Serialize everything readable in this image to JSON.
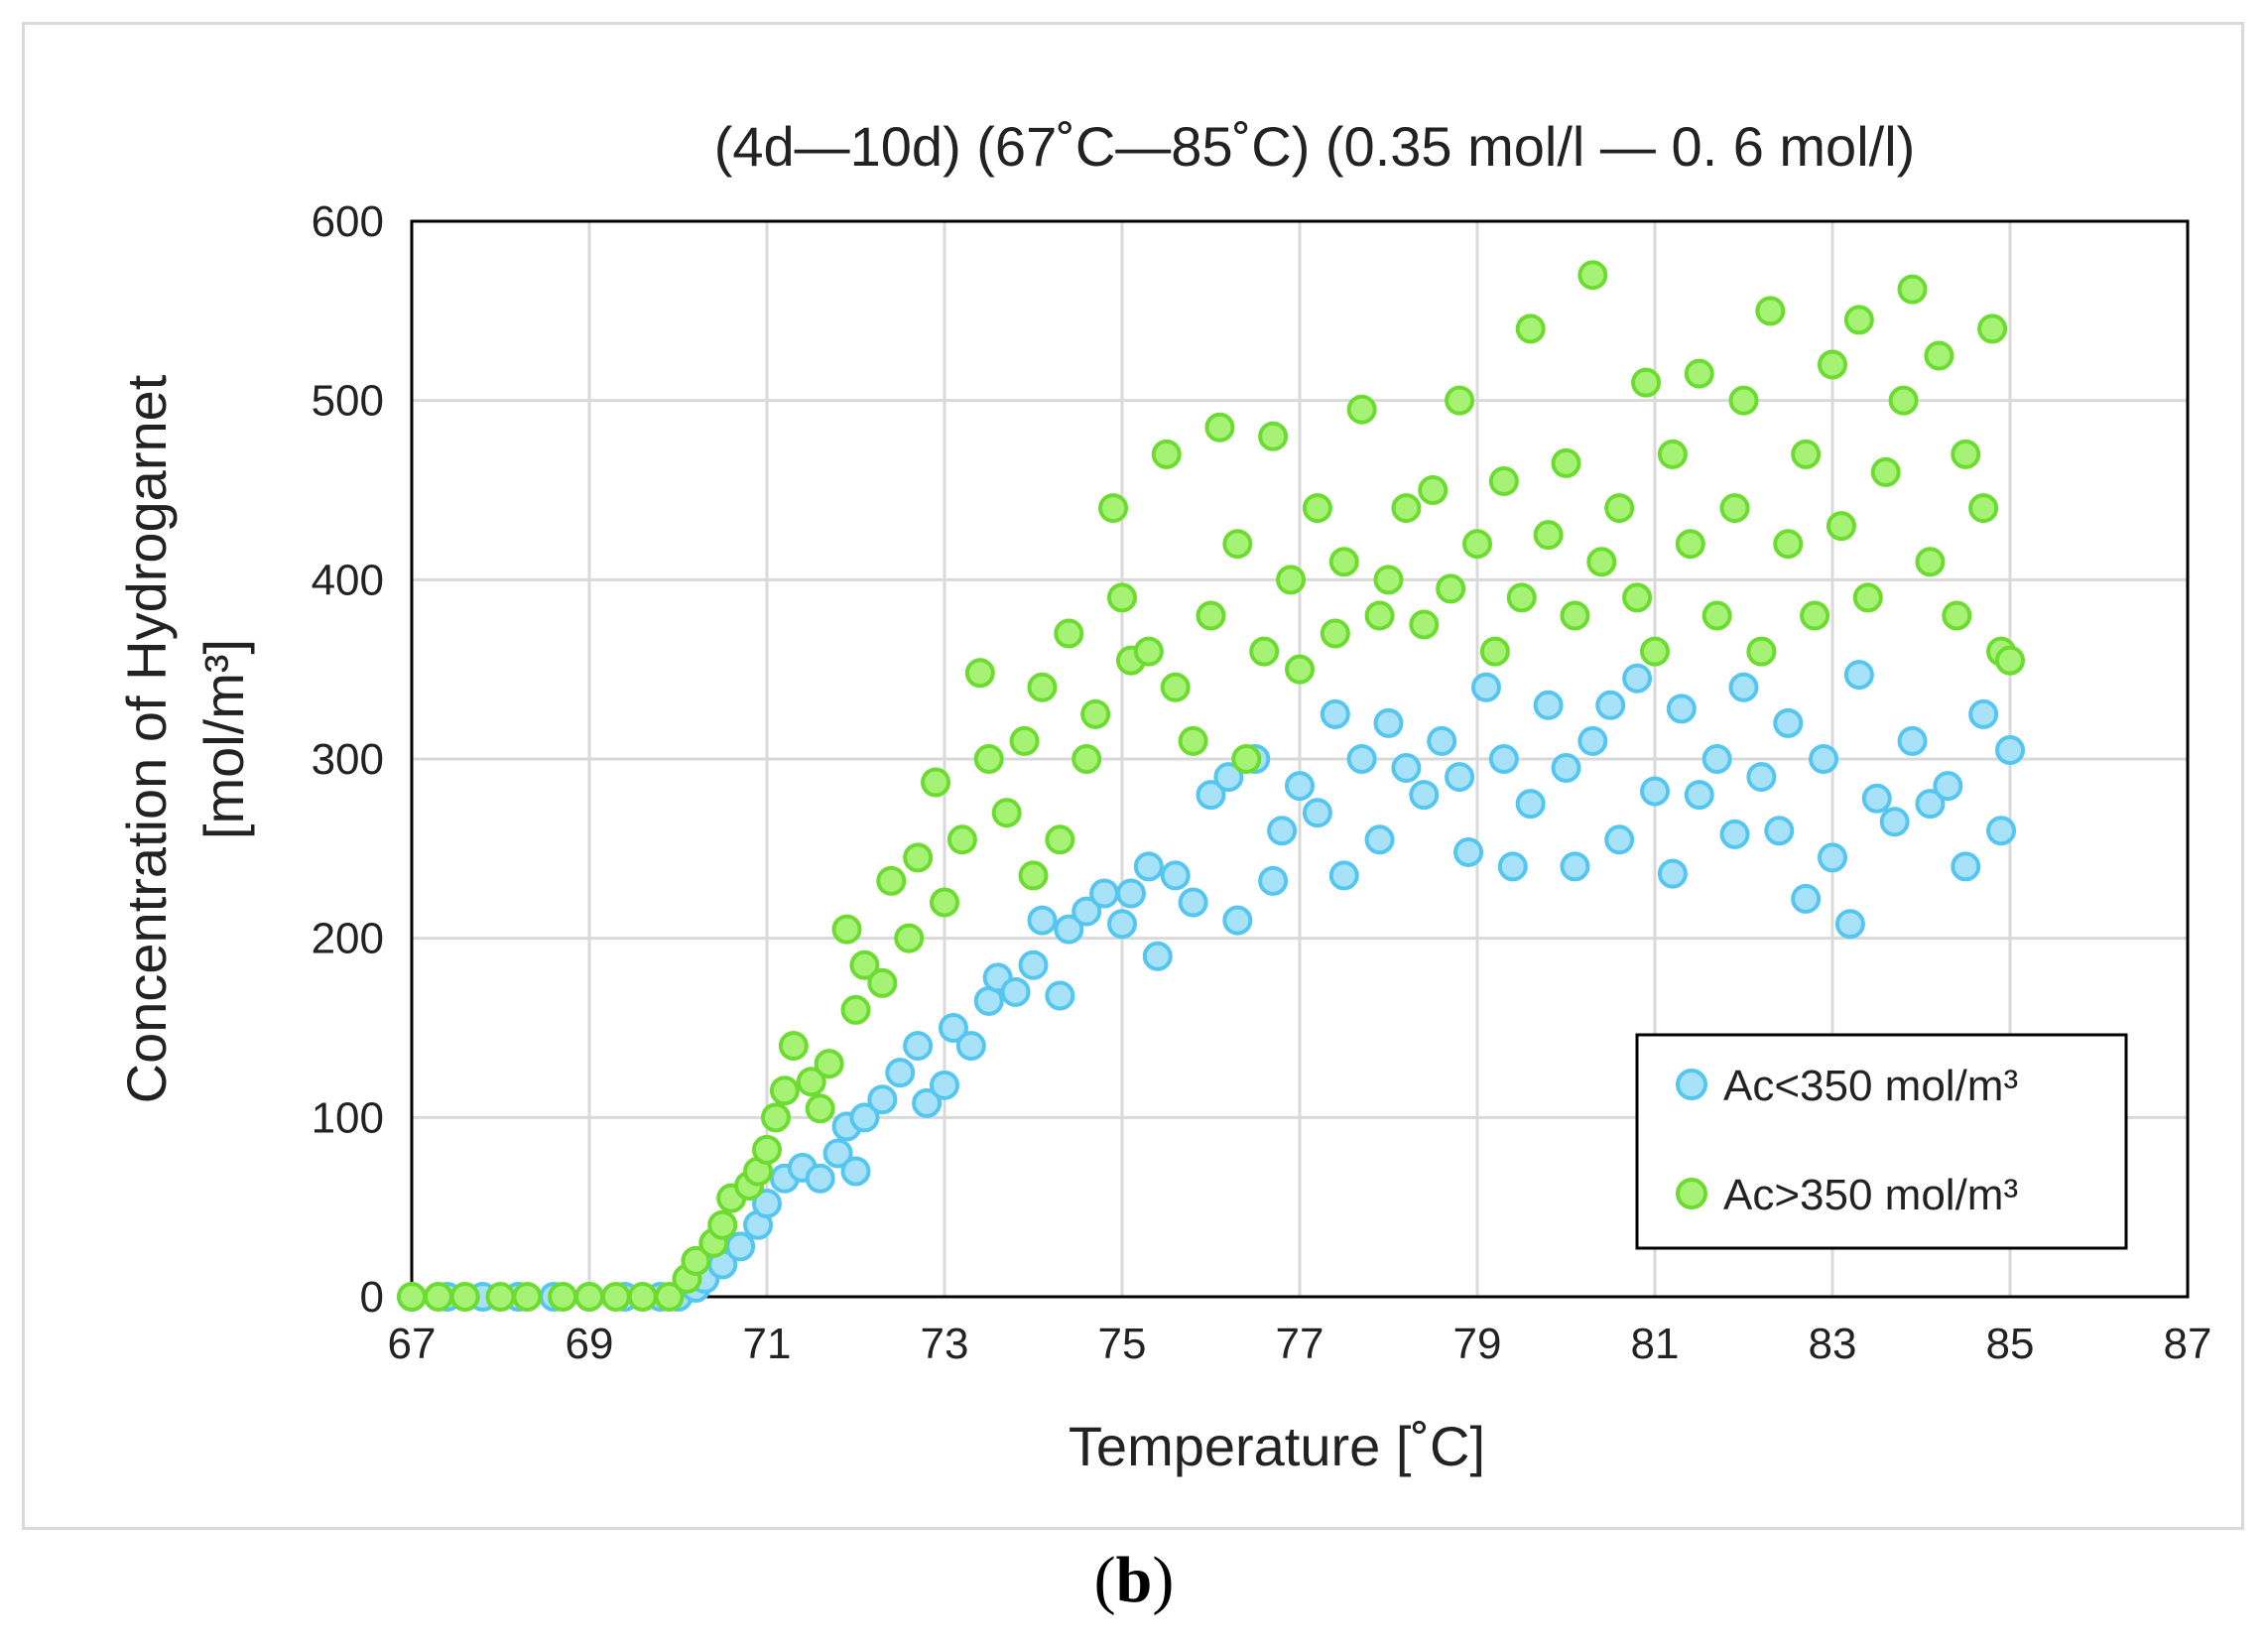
{
  "caption": {
    "open": "(",
    "letter": "b",
    "close": ")"
  },
  "chart_data": {
    "type": "scatter",
    "title": "(4d—10d) (67˚C—85˚C) (0.35 mol/l — 0. 6 mol/l)",
    "xlabel": "Temperature [˚C]",
    "ylabel_line1": "Concentration of Hydrogarnet",
    "ylabel_line2": "[mol/m³]",
    "xlim": [
      67,
      87
    ],
    "ylim": [
      0,
      600
    ],
    "xticks": [
      67,
      69,
      71,
      73,
      75,
      77,
      79,
      81,
      83,
      85,
      87
    ],
    "yticks": [
      0,
      100,
      200,
      300,
      400,
      500,
      600
    ],
    "grid": true,
    "legend_position": "bottom-right",
    "series": [
      {
        "name": "Ac<350 mol/m³",
        "fill": "#a8e2f8",
        "stroke": "#55c6f0",
        "points": [
          [
            67,
            0
          ],
          [
            67.4,
            0
          ],
          [
            67.8,
            0
          ],
          [
            68.2,
            0
          ],
          [
            68.6,
            0
          ],
          [
            69,
            0
          ],
          [
            69.4,
            0
          ],
          [
            69.8,
            0
          ],
          [
            70,
            0
          ],
          [
            70.2,
            5
          ],
          [
            70.3,
            10
          ],
          [
            70.5,
            18
          ],
          [
            70.7,
            28
          ],
          [
            70.9,
            40
          ],
          [
            71.0,
            52
          ],
          [
            71.2,
            66
          ],
          [
            71.4,
            72
          ],
          [
            71.6,
            66
          ],
          [
            71.8,
            80
          ],
          [
            71.9,
            95
          ],
          [
            72.0,
            70
          ],
          [
            72.1,
            100
          ],
          [
            72.3,
            110
          ],
          [
            72.5,
            125
          ],
          [
            72.7,
            140
          ],
          [
            72.8,
            108
          ],
          [
            73.0,
            118
          ],
          [
            73.1,
            150
          ],
          [
            73.3,
            140
          ],
          [
            73.5,
            165
          ],
          [
            73.6,
            178
          ],
          [
            73.8,
            170
          ],
          [
            74.0,
            185
          ],
          [
            74.1,
            210
          ],
          [
            74.3,
            168
          ],
          [
            74.4,
            205
          ],
          [
            74.6,
            215
          ],
          [
            74.8,
            225
          ],
          [
            75.0,
            208
          ],
          [
            75.1,
            225
          ],
          [
            75.3,
            240
          ],
          [
            75.4,
            190
          ],
          [
            75.6,
            235
          ],
          [
            75.8,
            220
          ],
          [
            76.0,
            280
          ],
          [
            76.2,
            290
          ],
          [
            76.3,
            210
          ],
          [
            76.5,
            300
          ],
          [
            76.7,
            232
          ],
          [
            76.8,
            260
          ],
          [
            77.0,
            285
          ],
          [
            77.2,
            270
          ],
          [
            77.4,
            325
          ],
          [
            77.5,
            235
          ],
          [
            77.7,
            300
          ],
          [
            77.9,
            255
          ],
          [
            78.0,
            320
          ],
          [
            78.2,
            295
          ],
          [
            78.4,
            280
          ],
          [
            78.6,
            310
          ],
          [
            78.8,
            290
          ],
          [
            78.9,
            248
          ],
          [
            79.1,
            340
          ],
          [
            79.3,
            300
          ],
          [
            79.4,
            240
          ],
          [
            79.6,
            275
          ],
          [
            79.8,
            330
          ],
          [
            80.0,
            295
          ],
          [
            80.1,
            240
          ],
          [
            80.3,
            310
          ],
          [
            80.5,
            330
          ],
          [
            80.6,
            255
          ],
          [
            80.8,
            345
          ],
          [
            81.0,
            282
          ],
          [
            81.2,
            236
          ],
          [
            81.3,
            328
          ],
          [
            81.5,
            280
          ],
          [
            81.7,
            300
          ],
          [
            81.9,
            258
          ],
          [
            82.0,
            340
          ],
          [
            82.2,
            290
          ],
          [
            82.4,
            260
          ],
          [
            82.5,
            320
          ],
          [
            82.7,
            222
          ],
          [
            82.9,
            300
          ],
          [
            83.0,
            245
          ],
          [
            83.2,
            208
          ],
          [
            83.3,
            347
          ],
          [
            83.5,
            278
          ],
          [
            83.7,
            265
          ],
          [
            83.9,
            310
          ],
          [
            84.1,
            275
          ],
          [
            84.3,
            285
          ],
          [
            84.5,
            240
          ],
          [
            84.7,
            325
          ],
          [
            84.9,
            260
          ],
          [
            85.0,
            305
          ]
        ]
      },
      {
        "name": "Ac>350 mol/m³",
        "fill": "#a6f274",
        "stroke": "#6cdc30",
        "points": [
          [
            67,
            0
          ],
          [
            67.3,
            0
          ],
          [
            67.6,
            0
          ],
          [
            68.0,
            0
          ],
          [
            68.3,
            0
          ],
          [
            68.7,
            0
          ],
          [
            69.0,
            0
          ],
          [
            69.3,
            0
          ],
          [
            69.6,
            0
          ],
          [
            69.9,
            0
          ],
          [
            70.1,
            10
          ],
          [
            70.2,
            20
          ],
          [
            70.4,
            30
          ],
          [
            70.5,
            40
          ],
          [
            70.6,
            55
          ],
          [
            70.8,
            62
          ],
          [
            70.9,
            70
          ],
          [
            71.0,
            82
          ],
          [
            71.1,
            100
          ],
          [
            71.2,
            115
          ],
          [
            71.3,
            140
          ],
          [
            71.5,
            120
          ],
          [
            71.6,
            105
          ],
          [
            71.7,
            130
          ],
          [
            71.9,
            205
          ],
          [
            72.0,
            160
          ],
          [
            72.1,
            185
          ],
          [
            72.3,
            175
          ],
          [
            72.4,
            232
          ],
          [
            72.6,
            200
          ],
          [
            72.7,
            245
          ],
          [
            72.9,
            287
          ],
          [
            73.0,
            220
          ],
          [
            73.2,
            255
          ],
          [
            73.4,
            348
          ],
          [
            73.5,
            300
          ],
          [
            73.7,
            270
          ],
          [
            73.9,
            310
          ],
          [
            74.0,
            235
          ],
          [
            74.1,
            340
          ],
          [
            74.3,
            255
          ],
          [
            74.4,
            370
          ],
          [
            74.6,
            300
          ],
          [
            74.7,
            325
          ],
          [
            74.9,
            440
          ],
          [
            75.0,
            390
          ],
          [
            75.1,
            355
          ],
          [
            75.3,
            360
          ],
          [
            75.5,
            470
          ],
          [
            75.6,
            340
          ],
          [
            75.8,
            310
          ],
          [
            76.0,
            380
          ],
          [
            76.1,
            485
          ],
          [
            76.3,
            420
          ],
          [
            76.4,
            300
          ],
          [
            76.6,
            360
          ],
          [
            76.7,
            480
          ],
          [
            76.9,
            400
          ],
          [
            77.0,
            350
          ],
          [
            77.2,
            440
          ],
          [
            77.4,
            370
          ],
          [
            77.5,
            410
          ],
          [
            77.7,
            495
          ],
          [
            77.9,
            380
          ],
          [
            78.0,
            400
          ],
          [
            78.2,
            440
          ],
          [
            78.4,
            375
          ],
          [
            78.5,
            450
          ],
          [
            78.7,
            395
          ],
          [
            78.8,
            500
          ],
          [
            79.0,
            420
          ],
          [
            79.2,
            360
          ],
          [
            79.3,
            455
          ],
          [
            79.5,
            390
          ],
          [
            79.6,
            540
          ],
          [
            79.8,
            425
          ],
          [
            80.0,
            465
          ],
          [
            80.1,
            380
          ],
          [
            80.3,
            570
          ],
          [
            80.4,
            410
          ],
          [
            80.6,
            440
          ],
          [
            80.8,
            390
          ],
          [
            80.9,
            510
          ],
          [
            81.0,
            360
          ],
          [
            81.2,
            470
          ],
          [
            81.4,
            420
          ],
          [
            81.5,
            515
          ],
          [
            81.7,
            380
          ],
          [
            81.9,
            440
          ],
          [
            82.0,
            500
          ],
          [
            82.2,
            360
          ],
          [
            82.3,
            550
          ],
          [
            82.5,
            420
          ],
          [
            82.7,
            470
          ],
          [
            82.8,
            380
          ],
          [
            83.0,
            520
          ],
          [
            83.1,
            430
          ],
          [
            83.3,
            545
          ],
          [
            83.4,
            390
          ],
          [
            83.6,
            460
          ],
          [
            83.8,
            500
          ],
          [
            83.9,
            562
          ],
          [
            84.1,
            410
          ],
          [
            84.2,
            525
          ],
          [
            84.4,
            380
          ],
          [
            84.5,
            470
          ],
          [
            84.7,
            440
          ],
          [
            84.8,
            540
          ],
          [
            84.9,
            360
          ],
          [
            85.0,
            355
          ]
        ]
      }
    ]
  }
}
